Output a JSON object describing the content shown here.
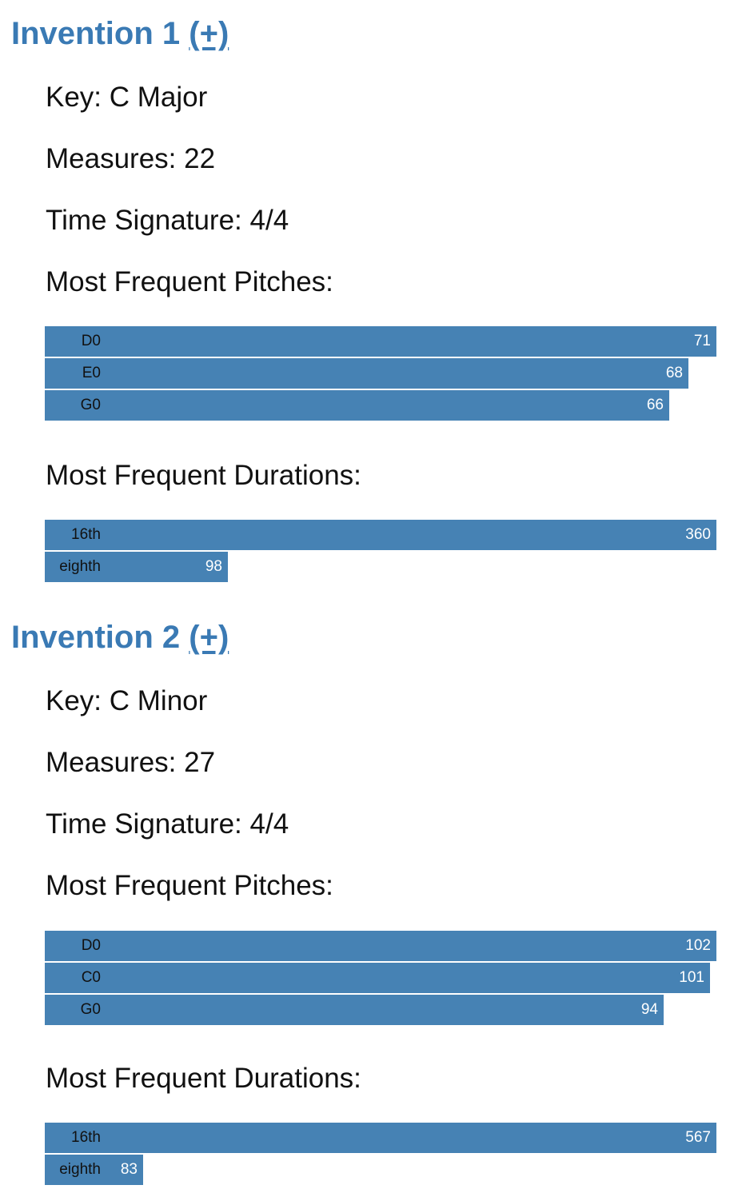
{
  "accent_color": "#4682b4",
  "title_color": "#3a7ab4",
  "inventions": [
    {
      "title": "Invention 1",
      "toggle_label": "(+)",
      "key_label": "Key:",
      "key": "C Major",
      "measures_label": "Measures:",
      "measures": "22",
      "time_signature_label": "Time Signature:",
      "time_signature": "4/4",
      "pitches_heading": "Most Frequent Pitches:",
      "durations_heading": "Most Frequent Durations:"
    },
    {
      "title": "Invention 2",
      "toggle_label": "(+)",
      "key_label": "Key:",
      "key": "C Minor",
      "measures_label": "Measures:",
      "measures": "27",
      "time_signature_label": "Time Signature:",
      "time_signature": "4/4",
      "pitches_heading": "Most Frequent Pitches:",
      "durations_heading": "Most Frequent Durations:"
    }
  ],
  "chart_data": [
    {
      "type": "bar",
      "orientation": "horizontal",
      "title": "Most Frequent Pitches:",
      "categories": [
        "D0",
        "E0",
        "G0"
      ],
      "values": [
        71,
        68,
        66
      ]
    },
    {
      "type": "bar",
      "orientation": "horizontal",
      "title": "Most Frequent Durations:",
      "categories": [
        "16th",
        "eighth"
      ],
      "values": [
        360,
        98
      ]
    },
    {
      "type": "bar",
      "orientation": "horizontal",
      "title": "Most Frequent Pitches:",
      "categories": [
        "D0",
        "C0",
        "G0"
      ],
      "values": [
        102,
        101,
        94
      ]
    },
    {
      "type": "bar",
      "orientation": "horizontal",
      "title": "Most Frequent Durations:",
      "categories": [
        "16th",
        "eighth"
      ],
      "values": [
        567,
        83
      ]
    }
  ]
}
